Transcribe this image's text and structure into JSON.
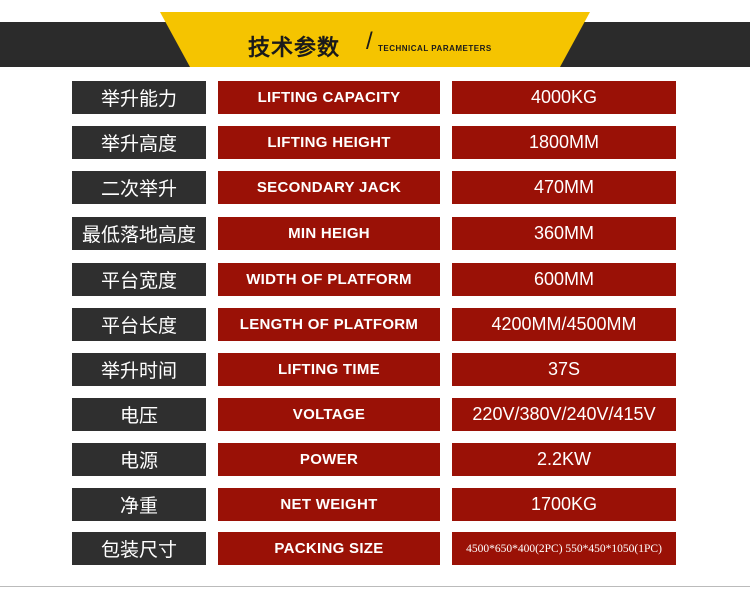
{
  "header": {
    "title": "技术参数",
    "slash": "/",
    "subtitle": "TECHNICAL PARAMETERS",
    "band_color": "#2b2b2b",
    "accent_color": "#f5c400"
  },
  "rows": [
    {
      "cn": "举升能力",
      "en": "LIFTING CAPACITY",
      "value": "4000KG"
    },
    {
      "cn": "举升高度",
      "en": "LIFTING HEIGHT",
      "value": "1800MM"
    },
    {
      "cn": "二次举升",
      "en": "SECONDARY  JACK",
      "value": "470MM"
    },
    {
      "cn": "最低落地高度",
      "en": "MIN HEIGH",
      "value": "360MM"
    },
    {
      "cn": "平台宽度",
      "en": "WIDTH OF PLATFORM",
      "value": "600MM"
    },
    {
      "cn": "平台长度",
      "en": "LENGTH OF PLATFORM",
      "value": "4200MM/4500MM"
    },
    {
      "cn": "举升时间",
      "en": "LIFTING TIME",
      "value": "37S"
    },
    {
      "cn": "电压",
      "en": "VOLTAGE",
      "value": "220V/380V/240V/415V"
    },
    {
      "cn": "电源",
      "en": "POWER",
      "value": "2.2KW"
    },
    {
      "cn": "净重",
      "en": "NET WEIGHT",
      "value": "1700KG"
    },
    {
      "cn": "包装尺寸",
      "en": "PACKING SIZE",
      "value": "4500*650*400(2PC) 550*450*1050(1PC)"
    }
  ],
  "colors": {
    "label_bg": "#2f2f2f",
    "cell_bg": "#9a1106",
    "text": "#ffffff"
  }
}
